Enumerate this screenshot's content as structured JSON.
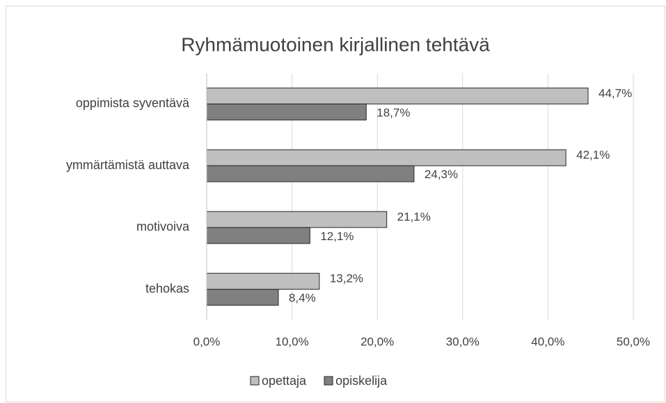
{
  "chart_data": {
    "type": "hbar",
    "title": "Ryhmämuotoinen kirjallinen tehtävä",
    "categories": [
      "oppimista syventävä",
      "ymmärtämistä auttava",
      "motivoiva",
      "tehokas"
    ],
    "series": [
      {
        "name": "opettaja",
        "color": "#bfbfbf",
        "values": [
          44.7,
          42.1,
          21.1,
          13.2
        ],
        "value_labels": [
          "44,7%",
          "42,1%",
          "21,1%",
          "13,2%"
        ]
      },
      {
        "name": "opiskelija",
        "color": "#808080",
        "values": [
          18.7,
          24.3,
          12.1,
          8.4
        ],
        "value_labels": [
          "18,7%",
          "24,3%",
          "12,1%",
          "8,4%"
        ]
      }
    ],
    "xlim": [
      0,
      50
    ],
    "xticks": [
      {
        "value": 0,
        "label": "0,0%"
      },
      {
        "value": 10,
        "label": "10,0%"
      },
      {
        "value": 20,
        "label": "20,0%"
      },
      {
        "value": 30,
        "label": "30,0%"
      },
      {
        "value": 40,
        "label": "40,0%"
      },
      {
        "value": 50,
        "label": "50,0%"
      }
    ],
    "grid": true,
    "legend": "bottom"
  }
}
